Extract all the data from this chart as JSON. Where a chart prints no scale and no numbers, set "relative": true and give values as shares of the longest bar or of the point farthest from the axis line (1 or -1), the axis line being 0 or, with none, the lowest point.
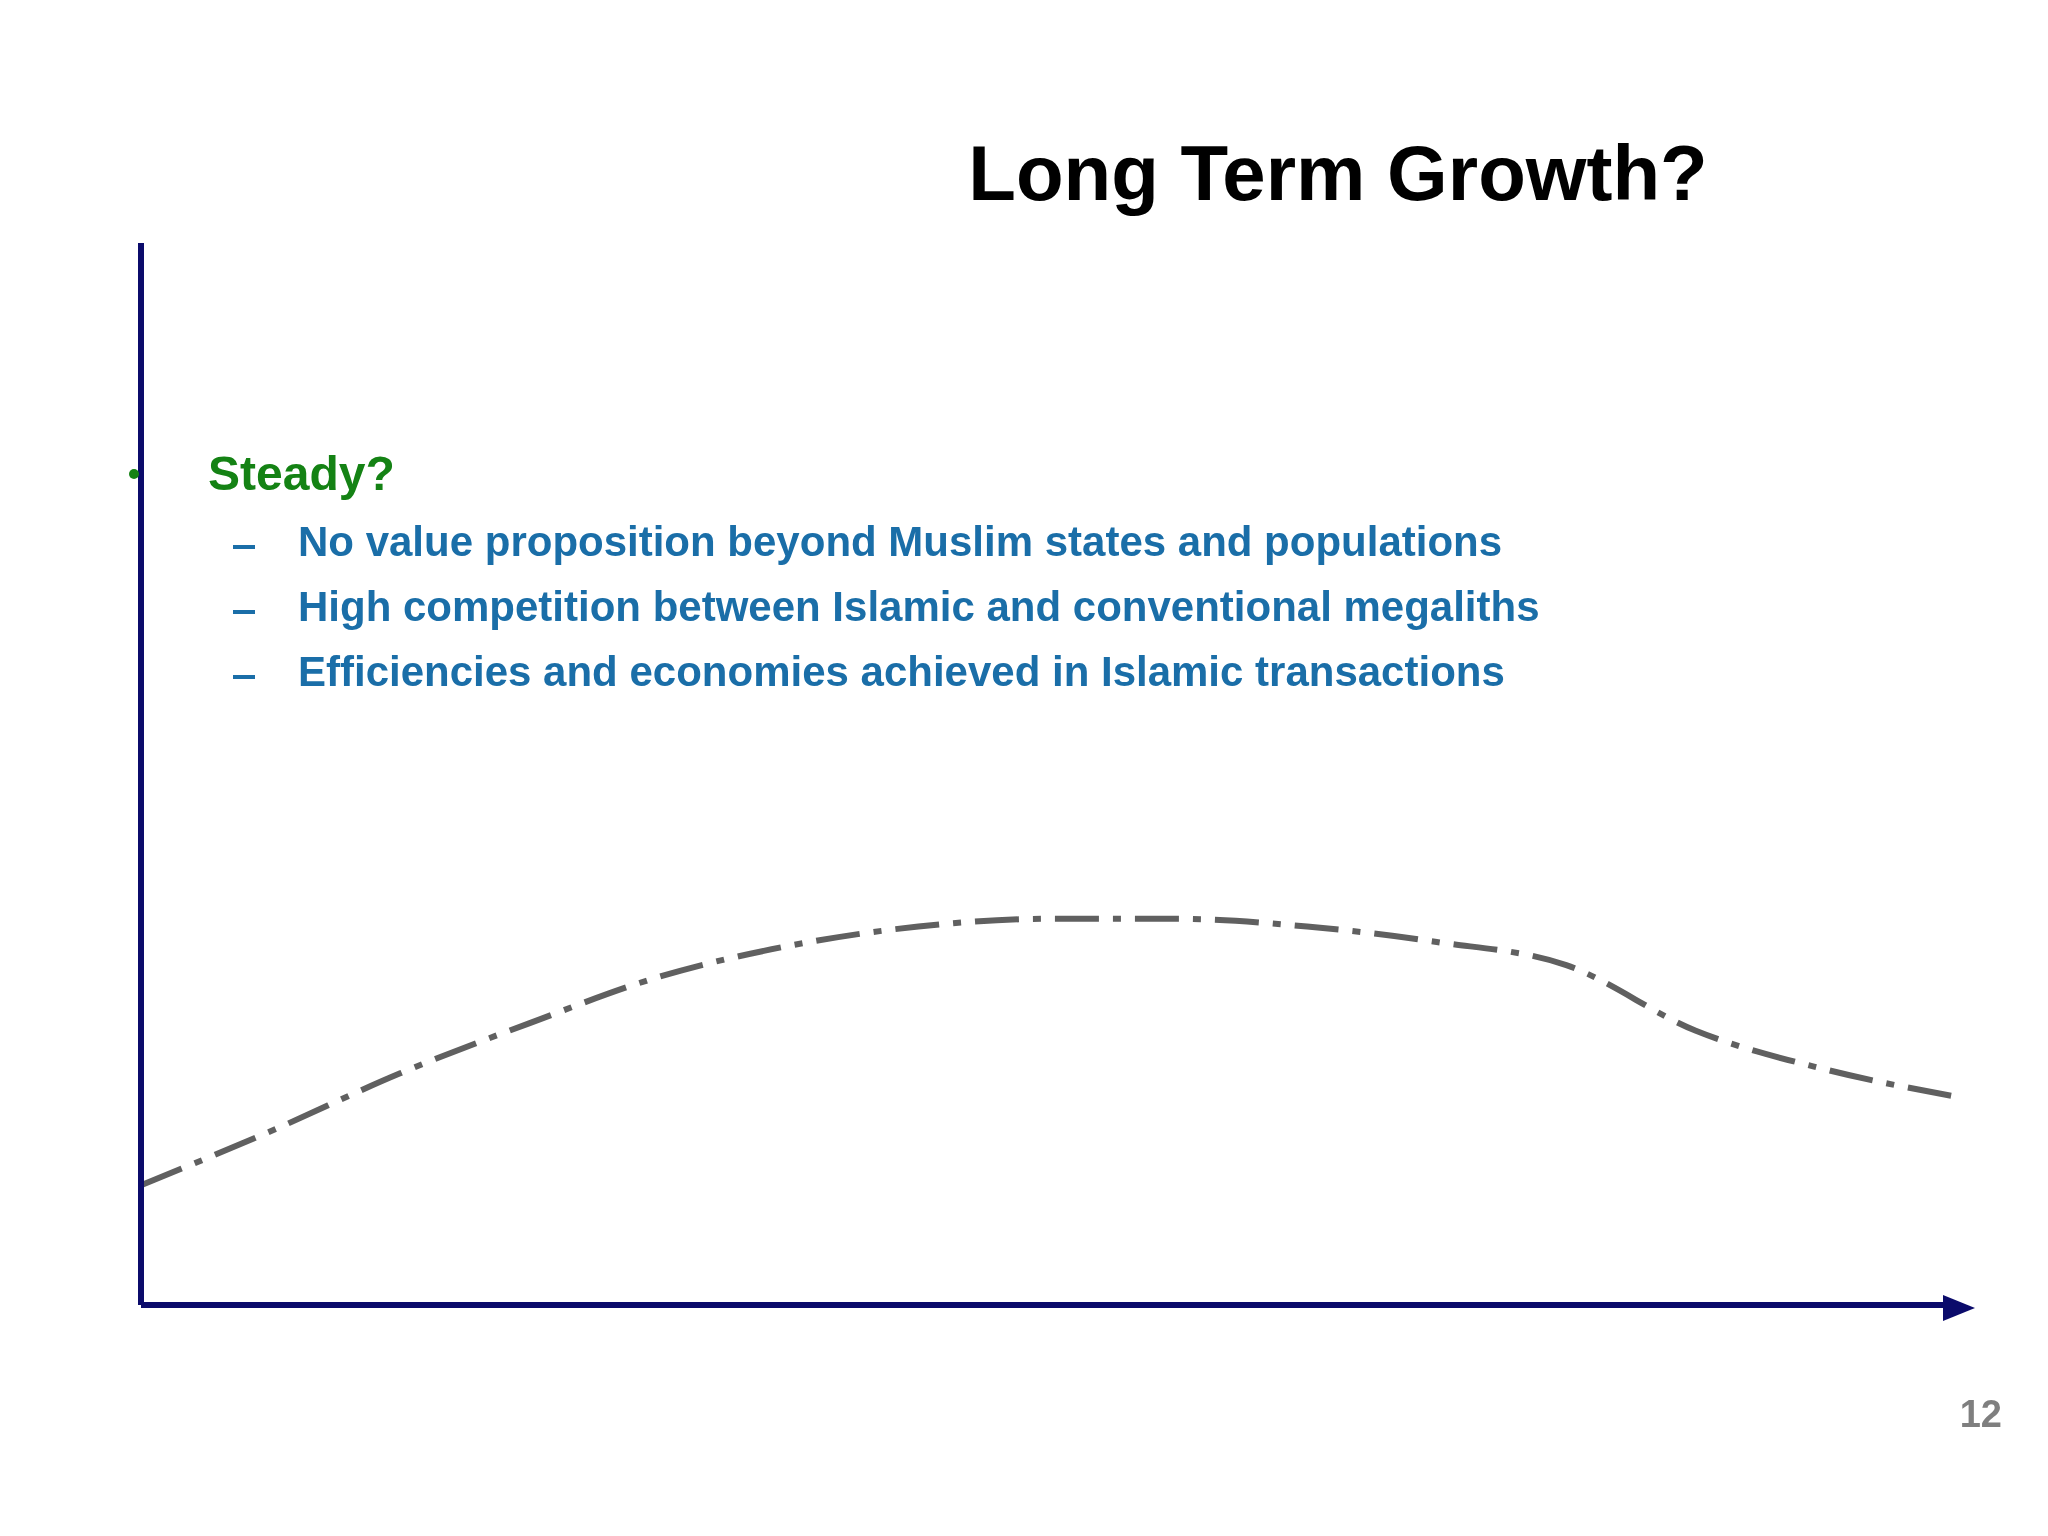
{
  "chart_data": {
    "type": "line",
    "title": "Long Term Growth?",
    "relative": true,
    "grid": false,
    "legend": false,
    "marker": "none",
    "line_style": "dashed",
    "categories": [
      null,
      null,
      null,
      null,
      null,
      null,
      null,
      null,
      null,
      null,
      null,
      null,
      null,
      null,
      null
    ],
    "series": [
      {
        "color": "#606060",
        "values": [
          0.31,
          0.45,
          0.6,
          0.73,
          0.85,
          0.93,
          0.98,
          1.0,
          1.0,
          0.98,
          0.94,
          0.88,
          0.71,
          0.61,
          0.54
        ]
      }
    ],
    "annotations": [
      "Steady?",
      "No value proposition beyond Muslim states and populations",
      "High competition between Islamic and conventional megaliths",
      "Efficiencies and economies achieved in Islamic transactions",
      "12"
    ]
  }
}
